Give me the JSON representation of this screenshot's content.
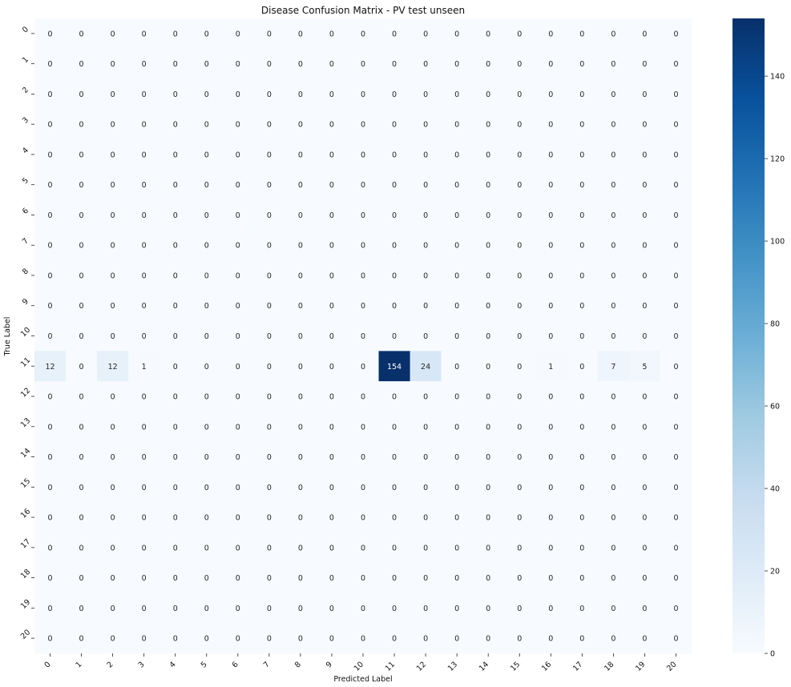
{
  "chart_data": {
    "type": "heatmap",
    "title": "Disease Confusion Matrix - PV test unseen",
    "xlabel": "Predicted Label",
    "ylabel": "True Label",
    "x_categories": [
      "0",
      "1",
      "2",
      "3",
      "4",
      "5",
      "6",
      "7",
      "8",
      "9",
      "10",
      "11",
      "12",
      "13",
      "14",
      "15",
      "16",
      "17",
      "18",
      "19",
      "20"
    ],
    "y_categories": [
      "0",
      "1",
      "2",
      "3",
      "4",
      "5",
      "6",
      "7",
      "8",
      "9",
      "10",
      "11",
      "12",
      "13",
      "14",
      "15",
      "16",
      "17",
      "18",
      "19",
      "20"
    ],
    "values": [
      [
        0,
        0,
        0,
        0,
        0,
        0,
        0,
        0,
        0,
        0,
        0,
        0,
        0,
        0,
        0,
        0,
        0,
        0,
        0,
        0,
        0
      ],
      [
        0,
        0,
        0,
        0,
        0,
        0,
        0,
        0,
        0,
        0,
        0,
        0,
        0,
        0,
        0,
        0,
        0,
        0,
        0,
        0,
        0
      ],
      [
        0,
        0,
        0,
        0,
        0,
        0,
        0,
        0,
        0,
        0,
        0,
        0,
        0,
        0,
        0,
        0,
        0,
        0,
        0,
        0,
        0
      ],
      [
        0,
        0,
        0,
        0,
        0,
        0,
        0,
        0,
        0,
        0,
        0,
        0,
        0,
        0,
        0,
        0,
        0,
        0,
        0,
        0,
        0
      ],
      [
        0,
        0,
        0,
        0,
        0,
        0,
        0,
        0,
        0,
        0,
        0,
        0,
        0,
        0,
        0,
        0,
        0,
        0,
        0,
        0,
        0
      ],
      [
        0,
        0,
        0,
        0,
        0,
        0,
        0,
        0,
        0,
        0,
        0,
        0,
        0,
        0,
        0,
        0,
        0,
        0,
        0,
        0,
        0
      ],
      [
        0,
        0,
        0,
        0,
        0,
        0,
        0,
        0,
        0,
        0,
        0,
        0,
        0,
        0,
        0,
        0,
        0,
        0,
        0,
        0,
        0
      ],
      [
        0,
        0,
        0,
        0,
        0,
        0,
        0,
        0,
        0,
        0,
        0,
        0,
        0,
        0,
        0,
        0,
        0,
        0,
        0,
        0,
        0
      ],
      [
        0,
        0,
        0,
        0,
        0,
        0,
        0,
        0,
        0,
        0,
        0,
        0,
        0,
        0,
        0,
        0,
        0,
        0,
        0,
        0,
        0
      ],
      [
        0,
        0,
        0,
        0,
        0,
        0,
        0,
        0,
        0,
        0,
        0,
        0,
        0,
        0,
        0,
        0,
        0,
        0,
        0,
        0,
        0
      ],
      [
        0,
        0,
        0,
        0,
        0,
        0,
        0,
        0,
        0,
        0,
        0,
        0,
        0,
        0,
        0,
        0,
        0,
        0,
        0,
        0,
        0
      ],
      [
        12,
        0,
        12,
        1,
        0,
        0,
        0,
        0,
        0,
        0,
        0,
        154,
        24,
        0,
        0,
        0,
        1,
        0,
        7,
        5,
        0
      ],
      [
        0,
        0,
        0,
        0,
        0,
        0,
        0,
        0,
        0,
        0,
        0,
        0,
        0,
        0,
        0,
        0,
        0,
        0,
        0,
        0,
        0
      ],
      [
        0,
        0,
        0,
        0,
        0,
        0,
        0,
        0,
        0,
        0,
        0,
        0,
        0,
        0,
        0,
        0,
        0,
        0,
        0,
        0,
        0
      ],
      [
        0,
        0,
        0,
        0,
        0,
        0,
        0,
        0,
        0,
        0,
        0,
        0,
        0,
        0,
        0,
        0,
        0,
        0,
        0,
        0,
        0
      ],
      [
        0,
        0,
        0,
        0,
        0,
        0,
        0,
        0,
        0,
        0,
        0,
        0,
        0,
        0,
        0,
        0,
        0,
        0,
        0,
        0,
        0
      ],
      [
        0,
        0,
        0,
        0,
        0,
        0,
        0,
        0,
        0,
        0,
        0,
        0,
        0,
        0,
        0,
        0,
        0,
        0,
        0,
        0,
        0
      ],
      [
        0,
        0,
        0,
        0,
        0,
        0,
        0,
        0,
        0,
        0,
        0,
        0,
        0,
        0,
        0,
        0,
        0,
        0,
        0,
        0,
        0
      ],
      [
        0,
        0,
        0,
        0,
        0,
        0,
        0,
        0,
        0,
        0,
        0,
        0,
        0,
        0,
        0,
        0,
        0,
        0,
        0,
        0,
        0
      ],
      [
        0,
        0,
        0,
        0,
        0,
        0,
        0,
        0,
        0,
        0,
        0,
        0,
        0,
        0,
        0,
        0,
        0,
        0,
        0,
        0,
        0
      ],
      [
        0,
        0,
        0,
        0,
        0,
        0,
        0,
        0,
        0,
        0,
        0,
        0,
        0,
        0,
        0,
        0,
        0,
        0,
        0,
        0,
        0
      ]
    ],
    "colorbar": {
      "min": 0,
      "max": 154,
      "ticks": [
        0,
        20,
        40,
        60,
        80,
        100,
        120,
        140
      ]
    },
    "colormap": "Blues",
    "colors": {
      "low": "#f7fbff",
      "high": "#08306b"
    },
    "grid": false,
    "legend": "colorbar-right"
  }
}
